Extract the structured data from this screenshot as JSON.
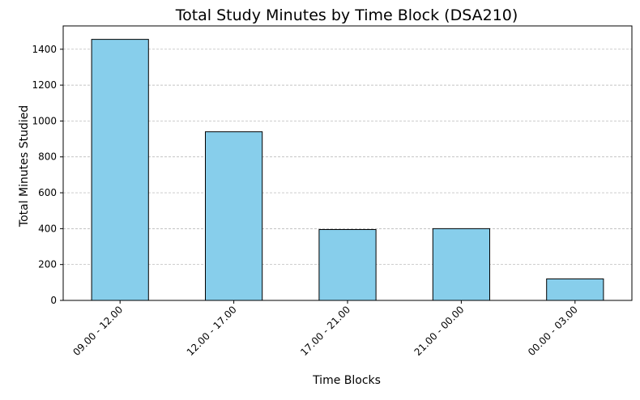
{
  "chart_data": {
    "type": "bar",
    "title": "Total Study Minutes by Time Block (DSA210)",
    "xlabel": "Time Blocks",
    "ylabel": "Total Minutes Studied",
    "categories": [
      "09.00 - 12.00",
      "12.00 - 17.00",
      "17.00 - 21.00",
      "21.00 - 00.00",
      "00.00 - 03.00"
    ],
    "values": [
      1455,
      940,
      395,
      400,
      120
    ],
    "ylim": [
      0,
      1530
    ],
    "yticks": [
      0,
      200,
      400,
      600,
      800,
      1000,
      1200,
      1400
    ],
    "grid": "y-axis dashed",
    "x_tick_rotation_deg": 45,
    "colors": {
      "bar_fill": "#87ceeb",
      "bar_edge": "#000000",
      "grid": "#b0b0b0",
      "axis": "#000000"
    }
  }
}
